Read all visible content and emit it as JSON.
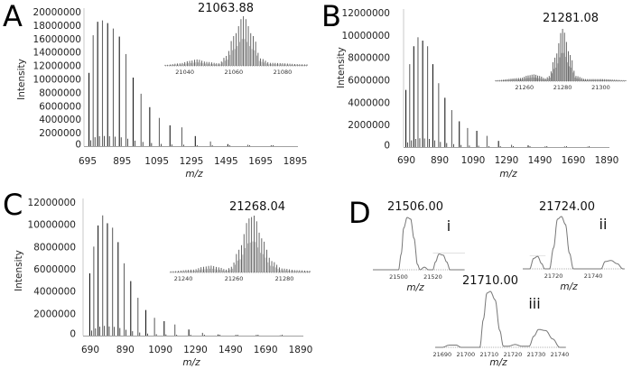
{
  "chart_data": [
    {
      "panel": "A",
      "type": "bar",
      "xlabel": "m/z",
      "ylabel": "Intensity",
      "xticks": [
        695,
        895,
        1095,
        1295,
        1495,
        1695,
        1895
      ],
      "yticks": [
        0,
        2000000,
        4000000,
        6000000,
        8000000,
        10000000,
        12000000,
        14000000,
        16000000,
        18000000,
        20000000
      ],
      "xlim": [
        695,
        1895
      ],
      "ylim": [
        0,
        20000000
      ],
      "peaks_mz": [
        703.1,
        727.3,
        753.3,
        781.1,
        811.1,
        843.6,
        878.7,
        916.8,
        958.4,
        1004.0,
        1054.2,
        1109.6,
        1171.2,
        1240.0,
        1317.5,
        1405.3,
        1505.6,
        1621.3,
        1756.3,
        1916.0
      ],
      "peaks_intensity": [
        10900000,
        16500000,
        18500000,
        18700000,
        18300000,
        17500000,
        16300000,
        13700000,
        10200000,
        7800000,
        5800000,
        4200000,
        3100000,
        2800000,
        1500000,
        700000,
        300000,
        200000,
        100000,
        50000
      ],
      "inset": {
        "mass_label": "21063.88",
        "xticks": [
          21040,
          21060,
          21080
        ],
        "xlim": [
          21032,
          21090
        ],
        "envelope": [
          [
            21032,
            0.02
          ],
          [
            21038,
            0.05
          ],
          [
            21042,
            0.1
          ],
          [
            21045,
            0.13
          ],
          [
            21049,
            0.08
          ],
          [
            21054,
            0.05
          ],
          [
            21057,
            0.2
          ],
          [
            21060,
            0.6
          ],
          [
            21064,
            1.0
          ],
          [
            21068,
            0.6
          ],
          [
            21071,
            0.15
          ],
          [
            21075,
            0.06
          ],
          [
            21090,
            0.03
          ]
        ]
      }
    },
    {
      "panel": "B",
      "type": "bar",
      "xlabel": "m/z",
      "ylabel": "Intensity",
      "xticks": [
        690,
        890,
        1090,
        1290,
        1490,
        1690,
        1890
      ],
      "yticks": [
        0,
        2000000,
        4000000,
        6000000,
        8000000,
        10000000,
        12000000
      ],
      "xlim": [
        690,
        1890
      ],
      "ylim": [
        0,
        12000000
      ],
      "peaks_mz": [
        687.5,
        710.4,
        735.0,
        760.0,
        788.2,
        817.5,
        849.2,
        883.7,
        921.3,
        962.4,
        1007.4,
        1057.0,
        1112.1,
        1173.3,
        1242.3,
        1320.1,
        1419.7,
        1521.1,
        1637.9,
        1774.4
      ],
      "peaks_intensity": [
        5100000,
        7400000,
        9000000,
        9800000,
        9500000,
        9000000,
        7400000,
        5700000,
        4400000,
        3300000,
        2300000,
        1700000,
        1450000,
        1000000,
        550000,
        200000,
        150000,
        60000,
        40000,
        30000
      ],
      "inset": {
        "mass_label": "21281.08",
        "xticks": [
          21260,
          21280,
          21300
        ],
        "xlim": [
          21245,
          21313
        ],
        "envelope": [
          [
            21245,
            0.02
          ],
          [
            21258,
            0.06
          ],
          [
            21262,
            0.11
          ],
          [
            21265,
            0.13
          ],
          [
            21268,
            0.1
          ],
          [
            21271,
            0.05
          ],
          [
            21273,
            0.1
          ],
          [
            21276,
            0.45
          ],
          [
            21280,
            1.0
          ],
          [
            21284,
            0.5
          ],
          [
            21287,
            0.1
          ],
          [
            21292,
            0.04
          ],
          [
            21300,
            0.04
          ],
          [
            21313,
            0.02
          ]
        ]
      }
    },
    {
      "panel": "C",
      "type": "bar",
      "xlabel": "m/z",
      "ylabel": "Intensity",
      "xticks": [
        690,
        890,
        1090,
        1290,
        1490,
        1690,
        1890
      ],
      "yticks": [
        0,
        2000000,
        4000000,
        6000000,
        8000000,
        10000000,
        12000000
      ],
      "xlim": [
        690,
        1890
      ],
      "ylim": [
        0,
        12000000
      ],
      "peaks_mz": [
        687.1,
        709.9,
        734.4,
        760.6,
        787.7,
        817.0,
        848.7,
        883.2,
        920.7,
        961.8,
        1006.8,
        1056.4,
        1111.4,
        1172.6,
        1252.1,
        1330.3,
        1419.0,
        1520.2,
        1637.0,
        1773.3
      ],
      "peaks_intensity": [
        5600000,
        8000000,
        9900000,
        10800000,
        10100000,
        9700000,
        8400000,
        6500000,
        4900000,
        3400000,
        2300000,
        1600000,
        1300000,
        1000000,
        550000,
        250000,
        100000,
        80000,
        50000,
        30000
      ],
      "inset": {
        "mass_label": "21268.04",
        "xticks": [
          21240,
          21260,
          21280
        ],
        "xlim": [
          21234.6,
          21290
        ],
        "envelope": [
          [
            21234.6,
            0.02
          ],
          [
            21244,
            0.05
          ],
          [
            21248,
            0.1
          ],
          [
            21251,
            0.12
          ],
          [
            21254,
            0.09
          ],
          [
            21257,
            0.05
          ],
          [
            21259,
            0.1
          ],
          [
            21262,
            0.4
          ],
          [
            21266,
            0.95
          ],
          [
            21268,
            1.0
          ],
          [
            21271,
            0.6
          ],
          [
            21275,
            0.2
          ],
          [
            21279,
            0.07
          ],
          [
            21285,
            0.04
          ],
          [
            21290,
            0.03
          ]
        ]
      }
    },
    {
      "panel": "D",
      "type": "line",
      "subpanels": [
        {
          "label": "i",
          "mass_label": "21506.00",
          "xlabel": "m/z",
          "xticks": [
            21500,
            21520
          ],
          "xlim": [
            21485,
            21538.7
          ],
          "points": [
            [
              21485,
              0
            ],
            [
              21500,
              0
            ],
            [
              21501.5,
              0.3
            ],
            [
              21503,
              0.8
            ],
            [
              21505,
              1.0
            ],
            [
              21507,
              0.97
            ],
            [
              21509,
              0.6
            ],
            [
              21511,
              0.1
            ],
            [
              21512.5,
              0
            ],
            [
              21515,
              0.05
            ],
            [
              21517.5,
              0
            ],
            [
              21520,
              0
            ],
            [
              21521.5,
              0.15
            ],
            [
              21523.5,
              0.3
            ],
            [
              21526,
              0.28
            ],
            [
              21528,
              0.15
            ],
            [
              21530,
              0
            ]
          ],
          "reference_level": 0.32
        },
        {
          "label": "ii",
          "mass_label": "21724.00",
          "xlabel": "m/z",
          "xticks": [
            21720,
            21740
          ],
          "xlim": [
            21704.5,
            21755.9
          ],
          "points": [
            [
              21704.5,
              0
            ],
            [
              21708,
              0
            ],
            [
              21710,
              0.2
            ],
            [
              21712,
              0.24
            ],
            [
              21714,
              0.1
            ],
            [
              21715.5,
              0
            ],
            [
              21718,
              0
            ],
            [
              21720,
              0.4
            ],
            [
              21722,
              0.95
            ],
            [
              21724,
              1.0
            ],
            [
              21726,
              0.85
            ],
            [
              21728,
              0.3
            ],
            [
              21730,
              0
            ],
            [
              21744,
              0
            ],
            [
              21746,
              0.14
            ],
            [
              21749,
              0.16
            ],
            [
              21752,
              0.1
            ],
            [
              21755,
              0
            ]
          ],
          "reference_level": 0.25
        },
        {
          "label": "iii",
          "mass_label": "21710.00",
          "xlabel": "m/z",
          "xticks": [
            21690,
            21700,
            21710,
            21720,
            21730,
            21740
          ],
          "xlim": [
            21687,
            21742.7
          ],
          "points": [
            [
              21687,
              0
            ],
            [
              21690,
              0
            ],
            [
              21693,
              0.04
            ],
            [
              21696,
              0.04
            ],
            [
              21698,
              0
            ],
            [
              21706,
              0
            ],
            [
              21707.5,
              0.5
            ],
            [
              21709,
              0.97
            ],
            [
              21710.5,
              1.0
            ],
            [
              21712.5,
              0.85
            ],
            [
              21714.5,
              0.3
            ],
            [
              21716,
              0.02
            ],
            [
              21718,
              0.02
            ],
            [
              21721,
              0.05
            ],
            [
              21724,
              0.02
            ],
            [
              21727,
              0.02
            ],
            [
              21729,
              0.2
            ],
            [
              21731,
              0.32
            ],
            [
              21734,
              0.3
            ],
            [
              21737,
              0.15
            ],
            [
              21740,
              0
            ],
            [
              21742.7,
              0
            ]
          ]
        }
      ]
    }
  ],
  "panel_letters": [
    "A",
    "B",
    "C",
    "D"
  ],
  "colors": {
    "spectrum": "#1a1a1a",
    "inset": "#555555",
    "axis": "#bbbbbb",
    "profile": "#777777"
  }
}
